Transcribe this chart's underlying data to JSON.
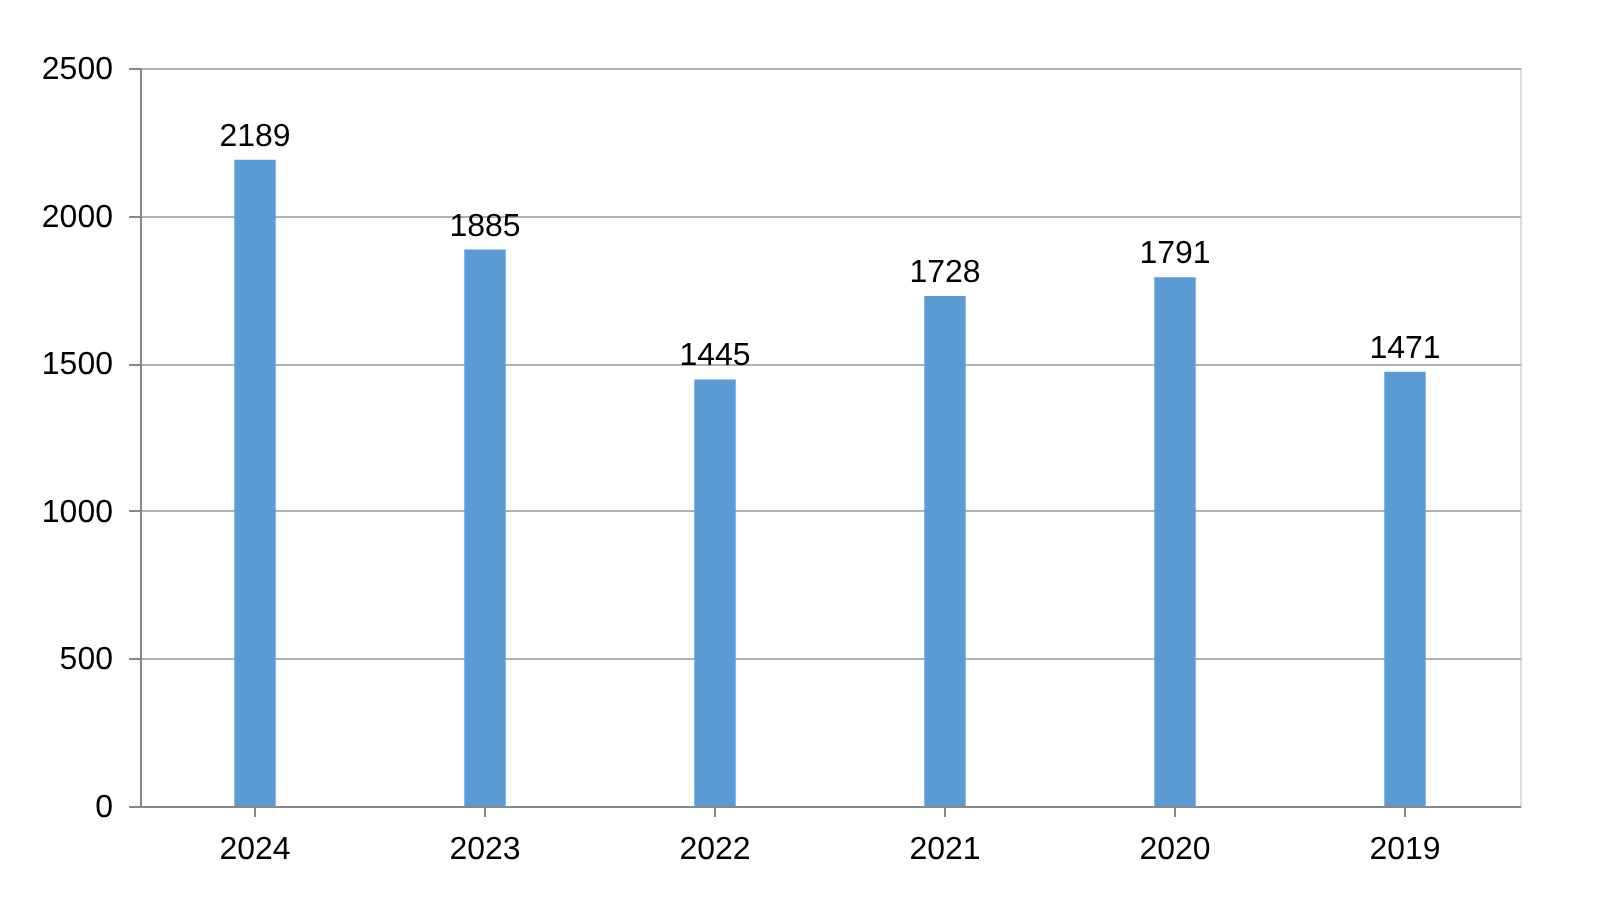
{
  "chart_data": {
    "type": "bar",
    "categories": [
      "2024",
      "2023",
      "2022",
      "2021",
      "2020",
      "2019"
    ],
    "values": [
      2189,
      1885,
      1445,
      1728,
      1791,
      1471
    ],
    "color": "#5b9bd5",
    "ylim": [
      0,
      2500
    ],
    "yticks": [
      0,
      500,
      1000,
      1500,
      2000,
      2500
    ],
    "grid": "y",
    "data_labels": true
  }
}
